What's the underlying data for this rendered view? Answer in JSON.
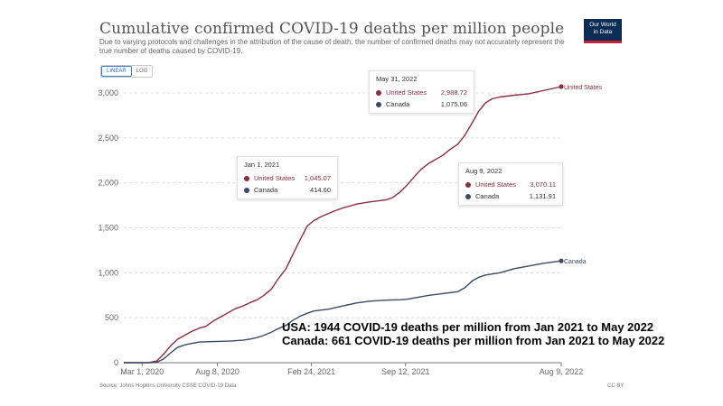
{
  "header": {
    "title": "Cumulative confirmed COVID-19 deaths per million people",
    "subtitle": "Due to varying protocols and challenges in the attribution of the cause of death, the number of confirmed deaths may not accurately represent the true number of deaths caused by COVID-19.",
    "logo_line1": "Our World",
    "logo_line2": "in Data",
    "scale_linear": "LINEAR",
    "scale_log": "LOG"
  },
  "tooltips": {
    "t1": {
      "date": "Jan 1, 2021",
      "us_name": "United States",
      "us_value": "1,045.07",
      "ca_name": "Canada",
      "ca_value": "414.60"
    },
    "t2": {
      "date": "May 31, 2022",
      "us_name": "United States",
      "us_value": "2,988.72",
      "ca_name": "Canada",
      "ca_value": "1,075.06"
    },
    "t3": {
      "date": "Aug 9, 2022",
      "us_name": "United States",
      "us_value": "3,070.11",
      "ca_name": "Canada",
      "ca_value": "1,131.91"
    }
  },
  "annotation": {
    "line1": "USA:  1944 COVID-19 deaths per million from Jan 2021 to May 2022",
    "line2": "Canada: 661 COVID-19 deaths per million from Jan 2021 to May 2022"
  },
  "footer": {
    "source": "Source: Johns Hopkins University CSSE COVID-19 Data",
    "license": "CC BY"
  },
  "chart_data": {
    "type": "line",
    "title": "Cumulative confirmed COVID-19 deaths per million people",
    "x_ticks": [
      "Mar 1, 2020",
      "Aug 8, 2020",
      "Feb 24, 2021",
      "Sep 12, 2021",
      "Aug 9, 2022"
    ],
    "y_ticks": [
      "0",
      "500",
      "1,000",
      "1,500",
      "2,000",
      "2,500",
      "3,000"
    ],
    "ylim": [
      0,
      3000
    ],
    "grid": true,
    "series": [
      {
        "name": "United States",
        "color": "#8c2e3e",
        "points": [
          [
            "2020-01-22",
            0
          ],
          [
            "2020-03-15",
            1
          ],
          [
            "2020-04-01",
            20
          ],
          [
            "2020-04-15",
            90
          ],
          [
            "2020-05-01",
            190
          ],
          [
            "2020-05-15",
            260
          ],
          [
            "2020-06-01",
            310
          ],
          [
            "2020-06-15",
            350
          ],
          [
            "2020-07-01",
            385
          ],
          [
            "2020-07-15",
            405
          ],
          [
            "2020-08-01",
            470
          ],
          [
            "2020-08-15",
            510
          ],
          [
            "2020-09-01",
            560
          ],
          [
            "2020-09-15",
            600
          ],
          [
            "2020-10-01",
            630
          ],
          [
            "2020-10-15",
            665
          ],
          [
            "2020-11-01",
            700
          ],
          [
            "2020-11-15",
            750
          ],
          [
            "2020-12-01",
            820
          ],
          [
            "2020-12-15",
            930
          ],
          [
            "2021-01-01",
            1045
          ],
          [
            "2021-01-15",
            1200
          ],
          [
            "2021-02-01",
            1380
          ],
          [
            "2021-02-15",
            1520
          ],
          [
            "2021-03-01",
            1580
          ],
          [
            "2021-03-15",
            1620
          ],
          [
            "2021-04-01",
            1660
          ],
          [
            "2021-04-15",
            1690
          ],
          [
            "2021-05-01",
            1720
          ],
          [
            "2021-06-01",
            1765
          ],
          [
            "2021-07-01",
            1790
          ],
          [
            "2021-08-01",
            1810
          ],
          [
            "2021-08-15",
            1835
          ],
          [
            "2021-09-01",
            1900
          ],
          [
            "2021-09-15",
            1975
          ],
          [
            "2021-10-01",
            2070
          ],
          [
            "2021-10-15",
            2150
          ],
          [
            "2021-11-01",
            2220
          ],
          [
            "2021-11-15",
            2260
          ],
          [
            "2021-12-01",
            2310
          ],
          [
            "2021-12-15",
            2370
          ],
          [
            "2022-01-01",
            2430
          ],
          [
            "2022-01-15",
            2520
          ],
          [
            "2022-02-01",
            2670
          ],
          [
            "2022-02-15",
            2800
          ],
          [
            "2022-03-01",
            2890
          ],
          [
            "2022-03-15",
            2935
          ],
          [
            "2022-04-01",
            2955
          ],
          [
            "2022-05-01",
            2975
          ],
          [
            "2022-05-31",
            2988.72
          ],
          [
            "2022-07-01",
            3025
          ],
          [
            "2022-08-09",
            3070.11
          ]
        ]
      },
      {
        "name": "Canada",
        "color": "#3b4a64",
        "points": [
          [
            "2020-01-22",
            0
          ],
          [
            "2020-03-15",
            0
          ],
          [
            "2020-04-01",
            5
          ],
          [
            "2020-04-15",
            40
          ],
          [
            "2020-05-01",
            110
          ],
          [
            "2020-05-15",
            170
          ],
          [
            "2020-06-01",
            200
          ],
          [
            "2020-06-15",
            215
          ],
          [
            "2020-07-01",
            230
          ],
          [
            "2020-08-01",
            235
          ],
          [
            "2020-09-01",
            240
          ],
          [
            "2020-10-01",
            250
          ],
          [
            "2020-10-15",
            262
          ],
          [
            "2020-11-01",
            280
          ],
          [
            "2020-11-15",
            305
          ],
          [
            "2020-12-01",
            340
          ],
          [
            "2020-12-15",
            378
          ],
          [
            "2021-01-01",
            414.6
          ],
          [
            "2021-01-15",
            470
          ],
          [
            "2021-02-01",
            520
          ],
          [
            "2021-02-15",
            550
          ],
          [
            "2021-03-01",
            575
          ],
          [
            "2021-04-01",
            595
          ],
          [
            "2021-05-01",
            630
          ],
          [
            "2021-06-01",
            665
          ],
          [
            "2021-07-01",
            685
          ],
          [
            "2021-08-01",
            695
          ],
          [
            "2021-09-01",
            700
          ],
          [
            "2021-09-15",
            705
          ],
          [
            "2021-10-01",
            720
          ],
          [
            "2021-11-01",
            750
          ],
          [
            "2021-12-01",
            770
          ],
          [
            "2022-01-01",
            790
          ],
          [
            "2022-01-15",
            830
          ],
          [
            "2022-02-01",
            910
          ],
          [
            "2022-02-15",
            950
          ],
          [
            "2022-03-01",
            975
          ],
          [
            "2022-04-01",
            1000
          ],
          [
            "2022-05-01",
            1045
          ],
          [
            "2022-05-31",
            1075.06
          ],
          [
            "2022-07-01",
            1105
          ],
          [
            "2022-08-09",
            1131.91
          ]
        ]
      }
    ]
  }
}
